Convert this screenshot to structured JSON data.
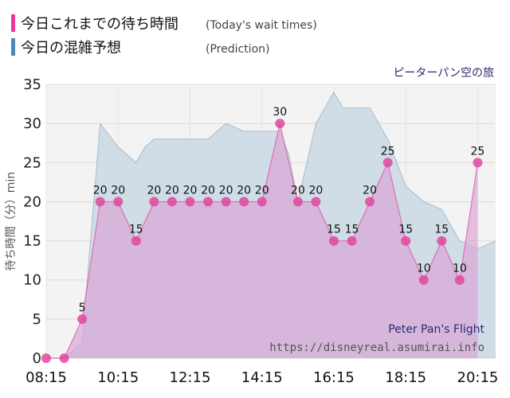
{
  "legend": {
    "actual_label": "今日これまでの待ち時間",
    "actual_label_en": "(Today's wait times)",
    "prediction_label": "今日の混雑予想",
    "prediction_label_en": "(Prediction)"
  },
  "attraction_name": "ピーターパン空の旅",
  "watermark": {
    "title": "Peter Pan's Flight",
    "url": "https://disneyreal.asumirai.info"
  },
  "colors": {
    "actual": "#e0479e",
    "actual_fill": "#d9a6d6",
    "prediction_fill": "#c9d8e4",
    "prediction_line": "#a9bccb",
    "legend_actual": "#f0359a",
    "legend_prediction": "#4f88b8",
    "plot_bg": "#f3f3f3",
    "title_color": "#2a2a6e"
  },
  "chart_data": {
    "type": "area",
    "title": "ピーターパン空の旅",
    "xlabel": "",
    "ylabel": "待ち時間（分）min",
    "xlim": [
      "08:15",
      "20:45"
    ],
    "ylim": [
      0,
      35
    ],
    "y_ticks": [
      0,
      5,
      10,
      15,
      20,
      25,
      30,
      35
    ],
    "x_ticks": [
      "08:15",
      "10:15",
      "12:15",
      "14:15",
      "16:15",
      "18:15",
      "20:15"
    ],
    "grid": true,
    "series": [
      {
        "name": "今日これまでの待ち時間",
        "x": [
          "08:15",
          "08:45",
          "09:15",
          "09:45",
          "10:15",
          "10:45",
          "11:15",
          "11:45",
          "12:15",
          "12:45",
          "13:15",
          "13:45",
          "14:15",
          "14:45",
          "15:15",
          "15:45",
          "16:15",
          "16:45",
          "17:15",
          "17:45",
          "18:15",
          "18:45",
          "19:15",
          "19:45",
          "20:15"
        ],
        "values": [
          0,
          0,
          5,
          20,
          20,
          15,
          20,
          20,
          20,
          20,
          20,
          20,
          20,
          30,
          20,
          20,
          15,
          15,
          20,
          25,
          15,
          10,
          15,
          10,
          25
        ],
        "labels_shown": [
          null,
          null,
          5,
          20,
          20,
          15,
          20,
          20,
          20,
          20,
          20,
          20,
          20,
          30,
          20,
          20,
          15,
          15,
          20,
          25,
          15,
          10,
          15,
          10,
          25
        ]
      },
      {
        "name": "今日の混雑予想",
        "x": [
          "08:15",
          "08:45",
          "09:15",
          "09:45",
          "10:15",
          "10:45",
          "11:00",
          "11:15",
          "11:45",
          "12:15",
          "12:45",
          "13:15",
          "13:45",
          "14:15",
          "14:45",
          "15:00",
          "15:15",
          "15:45",
          "16:15",
          "16:30",
          "16:45",
          "17:15",
          "17:45",
          "18:15",
          "18:45",
          "19:15",
          "19:45",
          "20:15",
          "20:45"
        ],
        "values": [
          0,
          0,
          2,
          30,
          27,
          25,
          27,
          28,
          28,
          28,
          28,
          30,
          29,
          29,
          29,
          26,
          20,
          30,
          34,
          32,
          32,
          32,
          28,
          22,
          20,
          19,
          15,
          14,
          15
        ]
      }
    ]
  }
}
